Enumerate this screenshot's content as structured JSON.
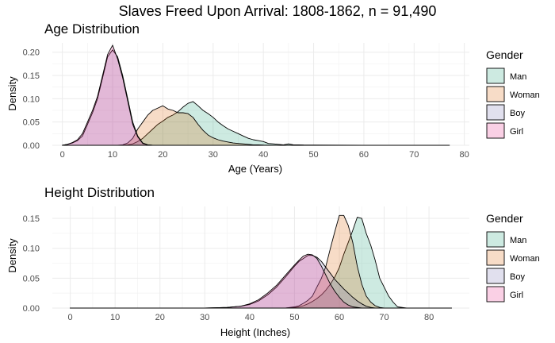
{
  "title": "Slaves Freed Upon Arrival: 1808-1862, n = 91,490",
  "colors": {
    "Man": "#1b9e77",
    "Woman": "#d95f02",
    "Boy": "#7570b3",
    "Girl": "#e7298a"
  },
  "chart_data": [
    {
      "type": "area",
      "title": "Age Distribution",
      "xlabel": "Age (Years)",
      "ylabel": "Density",
      "xlim": [
        -2,
        81
      ],
      "ylim": [
        0,
        0.22
      ],
      "xticks": [
        0,
        10,
        20,
        30,
        40,
        50,
        60,
        70,
        80
      ],
      "yticks": [
        "0.00",
        "0.05",
        "0.10",
        "0.15",
        "0.20"
      ],
      "grid": true,
      "legend_title": "Gender",
      "legend_position": "right",
      "x": [
        0,
        1,
        2,
        3,
        4,
        5,
        6,
        7,
        8,
        9,
        10,
        11,
        12,
        13,
        14,
        15,
        16,
        17,
        18,
        19,
        20,
        21,
        22,
        23,
        24,
        25,
        26,
        27,
        28,
        29,
        30,
        31,
        32,
        33,
        34,
        35,
        36,
        37,
        38,
        39,
        40,
        41,
        42,
        43,
        44,
        45,
        46,
        47,
        48,
        50,
        55,
        60,
        65,
        70,
        77
      ],
      "series": [
        {
          "name": "Man",
          "values": [
            0,
            0,
            0,
            0,
            0,
            0,
            0,
            0,
            0,
            0,
            0,
            0,
            0,
            0.001,
            0.003,
            0.008,
            0.015,
            0.025,
            0.035,
            0.045,
            0.052,
            0.06,
            0.065,
            0.072,
            0.082,
            0.09,
            0.094,
            0.085,
            0.075,
            0.068,
            0.06,
            0.05,
            0.042,
            0.035,
            0.03,
            0.025,
            0.02,
            0.015,
            0.012,
            0.01,
            0.008,
            0.004,
            0.003,
            0.002,
            0.001,
            0.003,
            0.001,
            0.001,
            0.0006,
            0.0005,
            0.0003,
            0.0002,
            0.0001,
            0,
            0
          ]
        },
        {
          "name": "Woman",
          "values": [
            0,
            0,
            0,
            0,
            0,
            0,
            0,
            0,
            0,
            0,
            0,
            0,
            0.001,
            0.005,
            0.015,
            0.035,
            0.05,
            0.065,
            0.075,
            0.08,
            0.085,
            0.078,
            0.075,
            0.07,
            0.07,
            0.068,
            0.06,
            0.045,
            0.032,
            0.022,
            0.016,
            0.012,
            0.009,
            0.007,
            0.005,
            0.004,
            0.003,
            0.002,
            0.001,
            0.001,
            0.0005,
            0.0003,
            0.0002,
            0.0001,
            0.0001,
            0,
            0,
            0,
            0,
            0,
            0,
            0,
            0,
            0,
            0
          ]
        },
        {
          "name": "Boy",
          "values": [
            0,
            0.002,
            0.005,
            0.01,
            0.02,
            0.045,
            0.07,
            0.1,
            0.145,
            0.19,
            0.205,
            0.19,
            0.15,
            0.1,
            0.05,
            0.02,
            0.005,
            0.001,
            0,
            0,
            0,
            0,
            0,
            0,
            0,
            0,
            0,
            0,
            0,
            0,
            0,
            0,
            0,
            0,
            0,
            0,
            0,
            0,
            0,
            0,
            0,
            0,
            0,
            0,
            0,
            0,
            0,
            0,
            0,
            0,
            0,
            0,
            0,
            0,
            0
          ]
        },
        {
          "name": "Girl",
          "values": [
            0,
            0.002,
            0.006,
            0.012,
            0.025,
            0.05,
            0.075,
            0.105,
            0.15,
            0.195,
            0.215,
            0.185,
            0.145,
            0.095,
            0.045,
            0.018,
            0.004,
            0.001,
            0,
            0,
            0,
            0,
            0,
            0,
            0,
            0,
            0,
            0,
            0,
            0,
            0,
            0,
            0,
            0,
            0,
            0,
            0,
            0,
            0,
            0,
            0,
            0,
            0,
            0,
            0,
            0,
            0,
            0,
            0,
            0,
            0,
            0,
            0,
            0,
            0
          ]
        }
      ]
    },
    {
      "type": "area",
      "title": "Height Distribution",
      "xlabel": "Height (Inches)",
      "ylabel": "Density",
      "xlim": [
        -4,
        89
      ],
      "ylim": [
        0,
        0.17
      ],
      "xticks": [
        0,
        10,
        20,
        30,
        40,
        50,
        60,
        70,
        80
      ],
      "yticks": [
        "0.00",
        "0.05",
        "0.10",
        "0.15"
      ],
      "grid": true,
      "legend_title": "Gender",
      "legend_position": "right",
      "x": [
        0,
        10,
        20,
        30,
        35,
        38,
        40,
        42,
        44,
        46,
        48,
        50,
        51,
        52,
        53,
        54,
        55,
        56,
        57,
        58,
        59,
        60,
        61,
        62,
        63,
        64,
        65,
        66,
        67,
        68,
        69,
        70,
        71,
        72,
        73,
        75,
        80,
        85
      ],
      "series": [
        {
          "name": "Man",
          "values": [
            0,
            0,
            0,
            0,
            0,
            0,
            0,
            0,
            0,
            0,
            0,
            0.001,
            0.002,
            0.004,
            0.007,
            0.011,
            0.016,
            0.022,
            0.03,
            0.04,
            0.052,
            0.068,
            0.09,
            0.11,
            0.13,
            0.152,
            0.15,
            0.125,
            0.105,
            0.08,
            0.05,
            0.035,
            0.02,
            0.01,
            0.002,
            0,
            0,
            0
          ]
        },
        {
          "name": "Woman",
          "values": [
            0,
            0,
            0,
            0,
            0,
            0,
            0,
            0,
            0,
            0,
            0,
            0.002,
            0.004,
            0.008,
            0.013,
            0.02,
            0.035,
            0.05,
            0.07,
            0.1,
            0.128,
            0.155,
            0.155,
            0.138,
            0.11,
            0.07,
            0.04,
            0.02,
            0.01,
            0.004,
            0.001,
            0,
            0,
            0,
            0,
            0,
            0,
            0
          ]
        },
        {
          "name": "Boy",
          "values": [
            0,
            0,
            0,
            0,
            0.001,
            0.003,
            0.006,
            0.012,
            0.022,
            0.035,
            0.052,
            0.07,
            0.078,
            0.083,
            0.088,
            0.088,
            0.085,
            0.078,
            0.068,
            0.058,
            0.048,
            0.04,
            0.032,
            0.025,
            0.018,
            0.012,
            0.007,
            0.003,
            0.001,
            0,
            0,
            0,
            0,
            0,
            0,
            0,
            0,
            0
          ]
        },
        {
          "name": "Girl",
          "values": [
            0,
            0,
            0,
            0,
            0.001,
            0.003,
            0.007,
            0.014,
            0.025,
            0.038,
            0.055,
            0.072,
            0.08,
            0.087,
            0.09,
            0.089,
            0.083,
            0.07,
            0.055,
            0.04,
            0.028,
            0.018,
            0.01,
            0.005,
            0.002,
            0.001,
            0,
            0,
            0,
            0,
            0,
            0,
            0,
            0,
            0,
            0,
            0,
            0
          ]
        }
      ]
    }
  ]
}
